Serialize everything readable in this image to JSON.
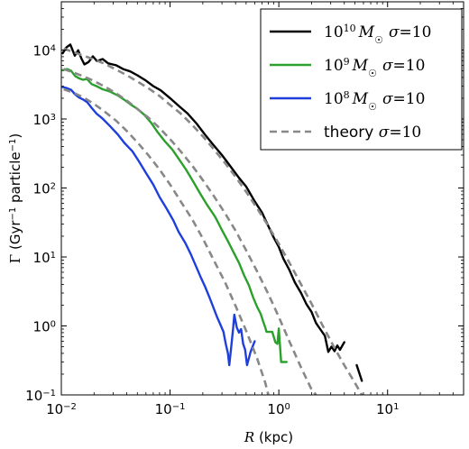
{
  "chart_data": {
    "type": "line",
    "xlabel": "R (kpc)",
    "ylabel": "Γ (Gyr⁻¹ particle⁻¹)",
    "xscale": "log",
    "yscale": "log",
    "xlim": [
      0.01,
      50
    ],
    "ylim": [
      0.1,
      50000
    ],
    "x_ticks": [
      {
        "value": 0.01,
        "base": "10",
        "exp": "-2"
      },
      {
        "value": 0.1,
        "base": "10",
        "exp": "-1"
      },
      {
        "value": 1,
        "base": "10",
        "exp": "0"
      },
      {
        "value": 10,
        "base": "10",
        "exp": "1"
      }
    ],
    "y_ticks": [
      {
        "value": 0.1,
        "base": "10",
        "exp": "-1"
      },
      {
        "value": 1,
        "base": "10",
        "exp": "0"
      },
      {
        "value": 10,
        "base": "10",
        "exp": "1"
      },
      {
        "value": 100,
        "base": "10",
        "exp": "2"
      },
      {
        "value": 1000,
        "base": "10",
        "exp": "3"
      },
      {
        "value": 10000,
        "base": "10",
        "exp": "4"
      }
    ],
    "legend_position": "top-right",
    "series": [
      {
        "name": "10^10 M☉ σ=10",
        "legend_base": "10",
        "legend_exp": "10",
        "color": "#000000",
        "style": "solid",
        "points": [
          [
            0.0103,
            9000
          ],
          [
            0.0112,
            11000
          ],
          [
            0.0121,
            12000
          ],
          [
            0.0133,
            8300
          ],
          [
            0.0143,
            9900
          ],
          [
            0.0153,
            7500
          ],
          [
            0.0163,
            6200
          ],
          [
            0.0178,
            6700
          ],
          [
            0.0195,
            8100
          ],
          [
            0.0213,
            6900
          ],
          [
            0.024,
            7400
          ],
          [
            0.027,
            6400
          ],
          [
            0.032,
            6000
          ],
          [
            0.037,
            5300
          ],
          [
            0.043,
            4900
          ],
          [
            0.05,
            4300
          ],
          [
            0.06,
            3600
          ],
          [
            0.07,
            3000
          ],
          [
            0.082,
            2600
          ],
          [
            0.1,
            2000
          ],
          [
            0.12,
            1550
          ],
          [
            0.145,
            1200
          ],
          [
            0.175,
            860
          ],
          [
            0.21,
            590
          ],
          [
            0.25,
            420
          ],
          [
            0.3,
            300
          ],
          [
            0.36,
            205
          ],
          [
            0.43,
            140
          ],
          [
            0.5,
            105
          ],
          [
            0.6,
            64
          ],
          [
            0.7,
            44
          ],
          [
            0.8,
            28
          ],
          [
            0.9,
            19
          ],
          [
            1.0,
            14
          ],
          [
            1.1,
            9.5
          ],
          [
            1.25,
            6.5
          ],
          [
            1.4,
            4.3
          ],
          [
            1.6,
            3.0
          ],
          [
            1.8,
            2.05
          ],
          [
            2.0,
            1.6
          ],
          [
            2.2,
            1.1
          ],
          [
            2.4,
            0.9
          ],
          [
            2.65,
            0.72
          ],
          [
            2.85,
            0.42
          ],
          [
            3.05,
            0.5
          ],
          [
            3.25,
            0.43
          ],
          [
            3.45,
            0.52
          ],
          [
            3.65,
            0.45
          ],
          [
            4.0,
            0.58
          ]
        ],
        "extra_segments": [
          [
            [
              5.2,
              0.27
            ],
            [
              5.8,
              0.16
            ]
          ]
        ]
      },
      {
        "name": "10^9 M☉ σ=10",
        "legend_base": "10",
        "legend_exp": "9",
        "color": "#2ca02c",
        "style": "solid",
        "points": [
          [
            0.0103,
            5100
          ],
          [
            0.0113,
            5300
          ],
          [
            0.0123,
            5000
          ],
          [
            0.0134,
            4200
          ],
          [
            0.0145,
            3900
          ],
          [
            0.0158,
            3700
          ],
          [
            0.0172,
            3800
          ],
          [
            0.019,
            3200
          ],
          [
            0.021,
            3000
          ],
          [
            0.024,
            2700
          ],
          [
            0.028,
            2500
          ],
          [
            0.033,
            2200
          ],
          [
            0.038,
            1900
          ],
          [
            0.044,
            1600
          ],
          [
            0.05,
            1400
          ],
          [
            0.058,
            1150
          ],
          [
            0.067,
            880
          ],
          [
            0.077,
            640
          ],
          [
            0.09,
            470
          ],
          [
            0.105,
            360
          ],
          [
            0.12,
            265
          ],
          [
            0.14,
            185
          ],
          [
            0.165,
            120
          ],
          [
            0.19,
            82
          ],
          [
            0.22,
            56
          ],
          [
            0.26,
            38
          ],
          [
            0.3,
            24.5
          ],
          [
            0.34,
            17
          ],
          [
            0.38,
            12
          ],
          [
            0.43,
            8.2
          ],
          [
            0.48,
            5.4
          ],
          [
            0.53,
            3.9
          ],
          [
            0.58,
            2.6
          ],
          [
            0.63,
            1.9
          ],
          [
            0.68,
            1.5
          ],
          [
            0.72,
            1.15
          ],
          [
            0.75,
            0.95
          ],
          [
            0.77,
            0.82
          ],
          [
            0.87,
            0.82
          ],
          [
            0.93,
            0.58
          ],
          [
            0.97,
            0.55
          ],
          [
            1.0,
            0.92
          ],
          [
            1.05,
            0.3
          ],
          [
            1.18,
            0.3
          ]
        ]
      },
      {
        "name": "10^8 M☉ σ=10",
        "legend_base": "10",
        "legend_exp": "8",
        "color": "#1f3fdc",
        "style": "solid",
        "points": [
          [
            0.0103,
            2900
          ],
          [
            0.0113,
            2800
          ],
          [
            0.0123,
            2650
          ],
          [
            0.0133,
            2300
          ],
          [
            0.0145,
            2050
          ],
          [
            0.0158,
            1920
          ],
          [
            0.0173,
            1750
          ],
          [
            0.019,
            1450
          ],
          [
            0.021,
            1200
          ],
          [
            0.024,
            1010
          ],
          [
            0.028,
            790
          ],
          [
            0.033,
            600
          ],
          [
            0.038,
            450
          ],
          [
            0.045,
            340
          ],
          [
            0.052,
            240
          ],
          [
            0.06,
            165
          ],
          [
            0.07,
            112
          ],
          [
            0.08,
            74
          ],
          [
            0.093,
            50
          ],
          [
            0.107,
            34
          ],
          [
            0.12,
            23
          ],
          [
            0.138,
            16
          ],
          [
            0.155,
            11
          ],
          [
            0.17,
            7.8
          ],
          [
            0.19,
            5.2
          ],
          [
            0.21,
            3.7
          ],
          [
            0.23,
            2.6
          ],
          [
            0.25,
            1.85
          ],
          [
            0.27,
            1.35
          ],
          [
            0.29,
            1.05
          ],
          [
            0.31,
            0.82
          ],
          [
            0.325,
            0.55
          ],
          [
            0.34,
            0.4
          ],
          [
            0.35,
            0.27
          ],
          [
            0.365,
            0.5
          ],
          [
            0.38,
            0.93
          ],
          [
            0.39,
            1.45
          ],
          [
            0.41,
            0.95
          ],
          [
            0.43,
            0.8
          ],
          [
            0.45,
            0.9
          ],
          [
            0.47,
            0.55
          ],
          [
            0.49,
            0.45
          ],
          [
            0.51,
            0.27
          ],
          [
            0.55,
            0.42
          ],
          [
            0.6,
            0.6
          ]
        ]
      },
      {
        "name": "theory σ=10",
        "color": "#888888",
        "style": "dashed",
        "segments": [
          [
            [
              0.0105,
              10500
            ],
            [
              0.013,
              9300
            ],
            [
              0.016,
              8300
            ],
            [
              0.02,
              7300
            ],
            [
              0.025,
              6300
            ],
            [
              0.032,
              5200
            ],
            [
              0.04,
              4300
            ],
            [
              0.05,
              3500
            ],
            [
              0.063,
              2800
            ],
            [
              0.08,
              2150
            ],
            [
              0.1,
              1600
            ],
            [
              0.125,
              1200
            ],
            [
              0.16,
              820
            ],
            [
              0.2,
              560
            ],
            [
              0.25,
              370
            ],
            [
              0.32,
              230
            ],
            [
              0.4,
              145
            ],
            [
              0.5,
              88
            ],
            [
              0.63,
              51
            ],
            [
              0.8,
              28
            ],
            [
              1.0,
              15.5
            ],
            [
              1.25,
              8.3
            ],
            [
              1.6,
              4.0
            ],
            [
              2.0,
              2.1
            ],
            [
              2.5,
              1.05
            ],
            [
              3.2,
              0.5
            ],
            [
              4.0,
              0.27
            ],
            [
              5.0,
              0.15
            ],
            [
              5.8,
              0.1
            ]
          ],
          [
            [
              0.0105,
              5300
            ],
            [
              0.013,
              4700
            ],
            [
              0.016,
              4150
            ],
            [
              0.02,
              3550
            ],
            [
              0.025,
              2950
            ],
            [
              0.032,
              2350
            ],
            [
              0.04,
              1850
            ],
            [
              0.05,
              1400
            ],
            [
              0.063,
              1050
            ],
            [
              0.08,
              740
            ],
            [
              0.1,
              510
            ],
            [
              0.125,
              340
            ],
            [
              0.16,
              210
            ],
            [
              0.2,
              130
            ],
            [
              0.25,
              78
            ],
            [
              0.32,
              43
            ],
            [
              0.4,
              24
            ],
            [
              0.5,
              12.5
            ],
            [
              0.63,
              6.2
            ],
            [
              0.8,
              2.9
            ],
            [
              1.0,
              1.35
            ],
            [
              1.25,
              0.6
            ],
            [
              1.6,
              0.25
            ],
            [
              2.0,
              0.12
            ],
            [
              2.2,
              0.1
            ]
          ],
          [
            [
              0.0105,
              2700
            ],
            [
              0.013,
              2400
            ],
            [
              0.016,
              2050
            ],
            [
              0.02,
              1650
            ],
            [
              0.025,
              1280
            ],
            [
              0.032,
              940
            ],
            [
              0.04,
              670
            ],
            [
              0.05,
              460
            ],
            [
              0.063,
              300
            ],
            [
              0.08,
              185
            ],
            [
              0.1,
              112
            ],
            [
              0.125,
              64
            ],
            [
              0.16,
              35
            ],
            [
              0.2,
              18.5
            ],
            [
              0.25,
              9.2
            ],
            [
              0.32,
              4.3
            ],
            [
              0.4,
              1.95
            ],
            [
              0.5,
              0.85
            ],
            [
              0.63,
              0.34
            ],
            [
              0.75,
              0.15
            ],
            [
              0.8,
              0.1
            ]
          ]
        ]
      }
    ]
  }
}
